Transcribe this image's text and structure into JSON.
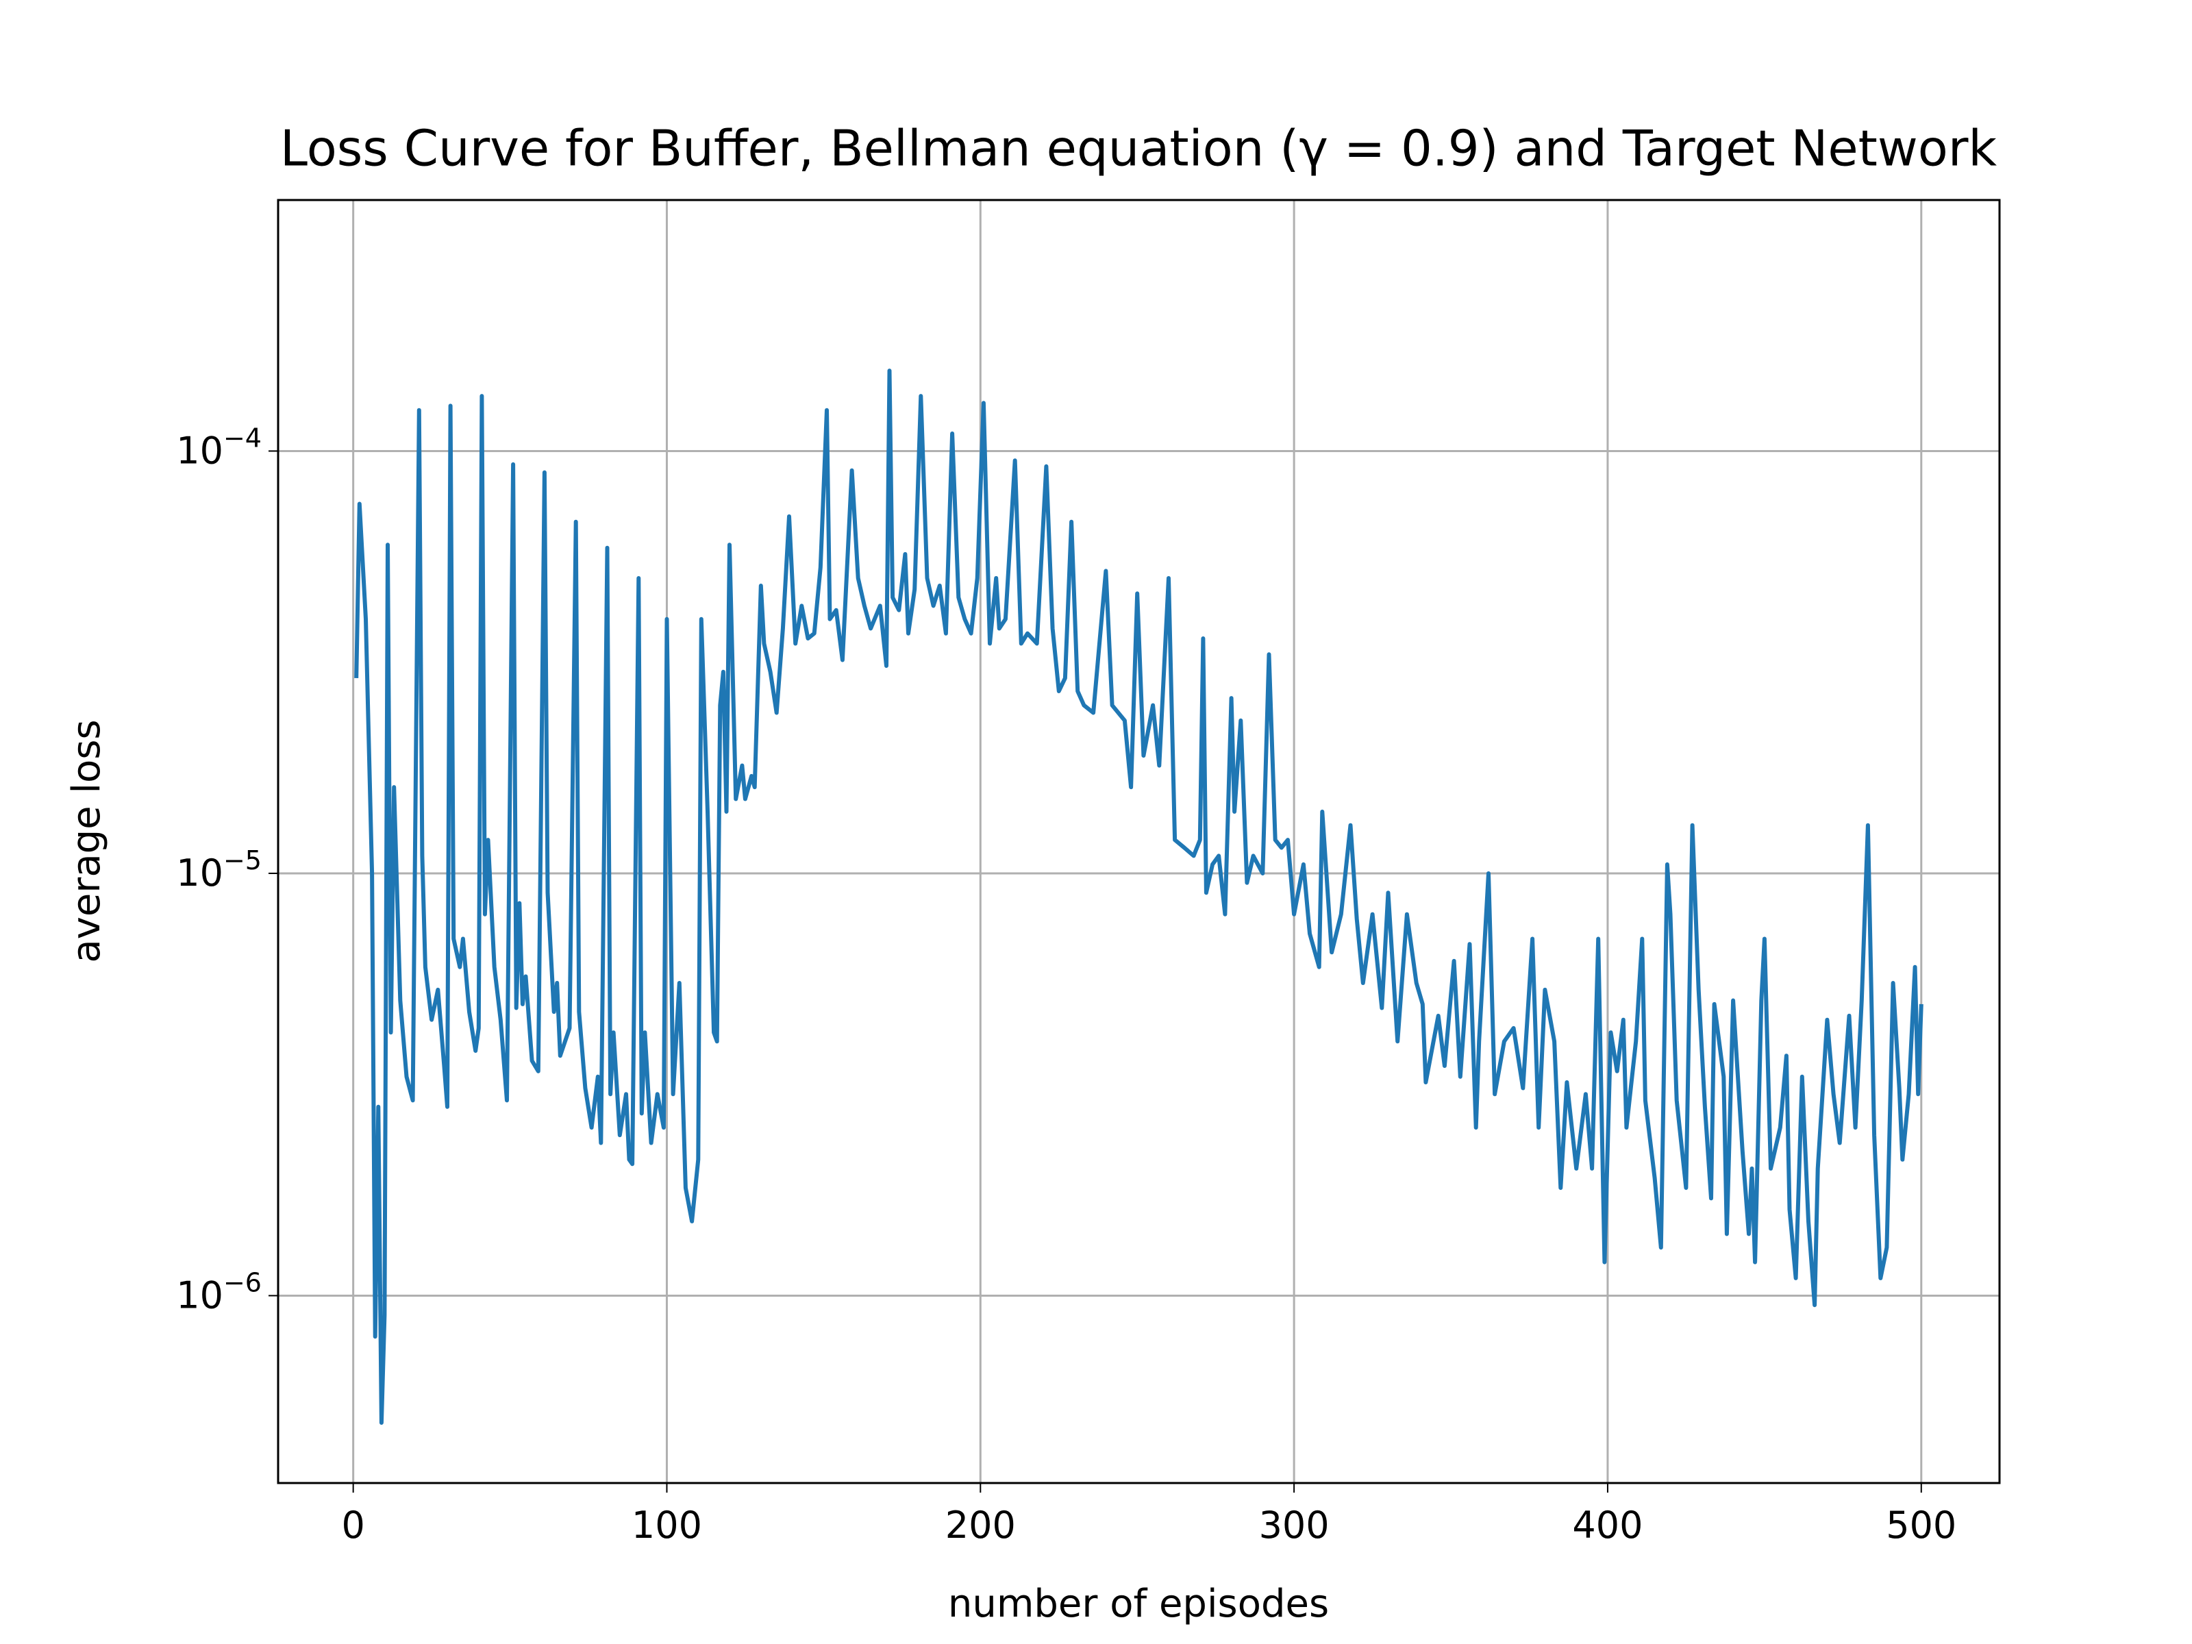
{
  "chart_data": {
    "type": "line",
    "title": "Loss Curve for Buffer, Bellman equation (γ = 0.9) and Target Network",
    "xlabel": "number of episodes",
    "ylabel": "average loss",
    "yscale": "log",
    "grid": true,
    "color": "#1f77b4",
    "xlim": [
      -23.95,
      524.95
    ],
    "xticks": [
      0,
      100,
      200,
      300,
      400,
      500
    ],
    "ylim": [
      3.6e-07,
      0.000393
    ],
    "yticks": [
      {
        "value": 1e-06,
        "label": "10−6"
      },
      {
        "value": 1e-05,
        "label": "10−5"
      },
      {
        "value": 0.0001,
        "label": "10−4"
      }
    ],
    "x": [
      1,
      2,
      4,
      6,
      7,
      8,
      9,
      10,
      11,
      12,
      13,
      15,
      17,
      19,
      21,
      22,
      23,
      25,
      27,
      29,
      30,
      31,
      32,
      34,
      35,
      37,
      39,
      40,
      41,
      42,
      43,
      45,
      47,
      49,
      51,
      52,
      53,
      54,
      55,
      57,
      59,
      61,
      62,
      64,
      65,
      66,
      69,
      71,
      72,
      74,
      76,
      78,
      79,
      81,
      82,
      83,
      85,
      87,
      88,
      89,
      91,
      92,
      93,
      95,
      97,
      99,
      100,
      102,
      104,
      106,
      108,
      110,
      111,
      113,
      115,
      116,
      117,
      118,
      119,
      120,
      122,
      124,
      125,
      127,
      128,
      130,
      131,
      133,
      135,
      137,
      139,
      141,
      143,
      145,
      147,
      149,
      151,
      152,
      154,
      156,
      159,
      161,
      163,
      165,
      168,
      170,
      171,
      172,
      174,
      176,
      177,
      179,
      181,
      183,
      185,
      187,
      189,
      191,
      193,
      195,
      197,
      199,
      201,
      203,
      205,
      206,
      208,
      211,
      213,
      215,
      218,
      221,
      223,
      225,
      227,
      229,
      231,
      233,
      236,
      240,
      242,
      246,
      248,
      250,
      252,
      255,
      257,
      260,
      262,
      265,
      268,
      270,
      271,
      272,
      274,
      276,
      278,
      280,
      281,
      283,
      285,
      287,
      290,
      292,
      294,
      296,
      298,
      300,
      303,
      305,
      308,
      309,
      312,
      315,
      318,
      320,
      322,
      325,
      328,
      330,
      333,
      336,
      339,
      341,
      342,
      346,
      348,
      351,
      353,
      356,
      358,
      359,
      362,
      364,
      367,
      370,
      373,
      376,
      378,
      380,
      383,
      385,
      387,
      390,
      393,
      395,
      397,
      399,
      401,
      403,
      405,
      406,
      409,
      411,
      412,
      415,
      417,
      419,
      420,
      422,
      425,
      427,
      429,
      431,
      433,
      434,
      437,
      438,
      440,
      443,
      445,
      446,
      447,
      449,
      450,
      452,
      455,
      457,
      458,
      460,
      462,
      464,
      466,
      467,
      470,
      472,
      474,
      477,
      479,
      481,
      483,
      485,
      487,
      489,
      491,
      493,
      494,
      496,
      498,
      499,
      500
    ],
    "values": [
      2.9e-05,
      7.5e-05,
      4e-05,
      1e-05,
      8e-07,
      2.8e-06,
      5e-07,
      9e-07,
      6e-05,
      4.2e-06,
      1.6e-05,
      5e-06,
      3.3e-06,
      2.9e-06,
      0.000125,
      1.1e-05,
      6e-06,
      4.5e-06,
      5.3e-06,
      3.5e-06,
      2.8e-06,
      0.000128,
      7e-06,
      6e-06,
      7e-06,
      4.7e-06,
      3.8e-06,
      4.3e-06,
      0.000135,
      8e-06,
      1.2e-05,
      6e-06,
      4.5e-06,
      2.9e-06,
      9.3e-05,
      4.8e-06,
      8.5e-06,
      4.9e-06,
      5.7e-06,
      3.6e-06,
      3.4e-06,
      8.9e-05,
      9e-06,
      4.7e-06,
      5.5e-06,
      3.7e-06,
      4.3e-06,
      6.8e-05,
      4.7e-06,
      3.1e-06,
      2.5e-06,
      3.3e-06,
      2.3e-06,
      5.9e-05,
      3e-06,
      4.2e-06,
      2.4e-06,
      3e-06,
      2.1e-06,
      2.05e-06,
      5e-05,
      2.7e-06,
      4.2e-06,
      2.3e-06,
      3e-06,
      2.5e-06,
      4e-05,
      3e-06,
      5.5e-06,
      1.8e-06,
      1.5e-06,
      2.1e-06,
      4e-05,
      1.4e-05,
      4.2e-06,
      4e-06,
      2.5e-05,
      3e-05,
      1.4e-05,
      6e-05,
      1.5e-05,
      1.8e-05,
      1.5e-05,
      1.7e-05,
      1.6e-05,
      4.8e-05,
      3.5e-05,
      3e-05,
      2.4e-05,
      3.8e-05,
      7e-05,
      3.5e-05,
      4.3e-05,
      3.6e-05,
      3.7e-05,
      5.3e-05,
      0.000125,
      4e-05,
      4.2e-05,
      3.2e-05,
      9e-05,
      5e-05,
      4.3e-05,
      3.8e-05,
      4.3e-05,
      3.1e-05,
      0.000155,
      4.5e-05,
      4.2e-05,
      5.7e-05,
      3.7e-05,
      4.7e-05,
      0.000135,
      5e-05,
      4.3e-05,
      4.8e-05,
      3.7e-05,
      0.00011,
      4.5e-05,
      4e-05,
      3.7e-05,
      5e-05,
      0.00013,
      3.5e-05,
      5e-05,
      3.8e-05,
      4e-05,
      9.5e-05,
      3.5e-05,
      3.7e-05,
      3.5e-05,
      9.2e-05,
      3.8e-05,
      2.7e-05,
      2.9e-05,
      6.8e-05,
      2.7e-05,
      2.5e-05,
      2.4e-05,
      5.2e-05,
      2.5e-05,
      2.3e-05,
      1.6e-05,
      4.6e-05,
      1.9e-05,
      2.5e-05,
      1.8e-05,
      5e-05,
      1.2e-05,
      1.15e-05,
      1.1e-05,
      1.2e-05,
      3.6e-05,
      9e-06,
      1.05e-05,
      1.1e-05,
      8e-06,
      2.6e-05,
      1.4e-05,
      2.3e-05,
      9.5e-06,
      1.1e-05,
      1e-05,
      3.3e-05,
      1.2e-05,
      1.15e-05,
      1.2e-05,
      8e-06,
      1.05e-05,
      7.2e-06,
      6e-06,
      1.4e-05,
      6.5e-06,
      8e-06,
      1.3e-05,
      7.8e-06,
      5.5e-06,
      8e-06,
      4.8e-06,
      9e-06,
      4e-06,
      8e-06,
      5.5e-06,
      4.9e-06,
      3.2e-06,
      4.6e-06,
      3.5e-06,
      6.2e-06,
      3.3e-06,
      6.8e-06,
      2.5e-06,
      4e-06,
      1e-05,
      3e-06,
      4e-06,
      4.3e-06,
      3.1e-06,
      7e-06,
      2.5e-06,
      5.3e-06,
      4e-06,
      1.8e-06,
      3.2e-06,
      2e-06,
      3e-06,
      2e-06,
      7e-06,
      1.2e-06,
      4.2e-06,
      3.4e-06,
      4.5e-06,
      2.5e-06,
      4e-06,
      7e-06,
      2.9e-06,
      1.9e-06,
      1.3e-06,
      1.05e-05,
      8e-06,
      2.9e-06,
      1.8e-06,
      1.3e-05,
      5.3e-06,
      2.8e-06,
      1.7e-06,
      4.9e-06,
      3.3e-06,
      1.4e-06,
      5e-06,
      2.2e-06,
      1.4e-06,
      2e-06,
      1.2e-06,
      5e-06,
      7e-06,
      2e-06,
      2.5e-06,
      3.7e-06,
      1.6e-06,
      1.1e-06,
      3.3e-06,
      1.5e-06,
      9.5e-07,
      2e-06,
      4.5e-06,
      3e-06,
      2.3e-06,
      4.6e-06,
      2.5e-06,
      5e-06,
      1.3e-05,
      2.4e-06,
      1.1e-06,
      1.3e-06,
      5.5e-06,
      3.1e-06,
      2.1e-06,
      3e-06,
      6e-06,
      3e-06,
      4.9e-06
    ]
  }
}
